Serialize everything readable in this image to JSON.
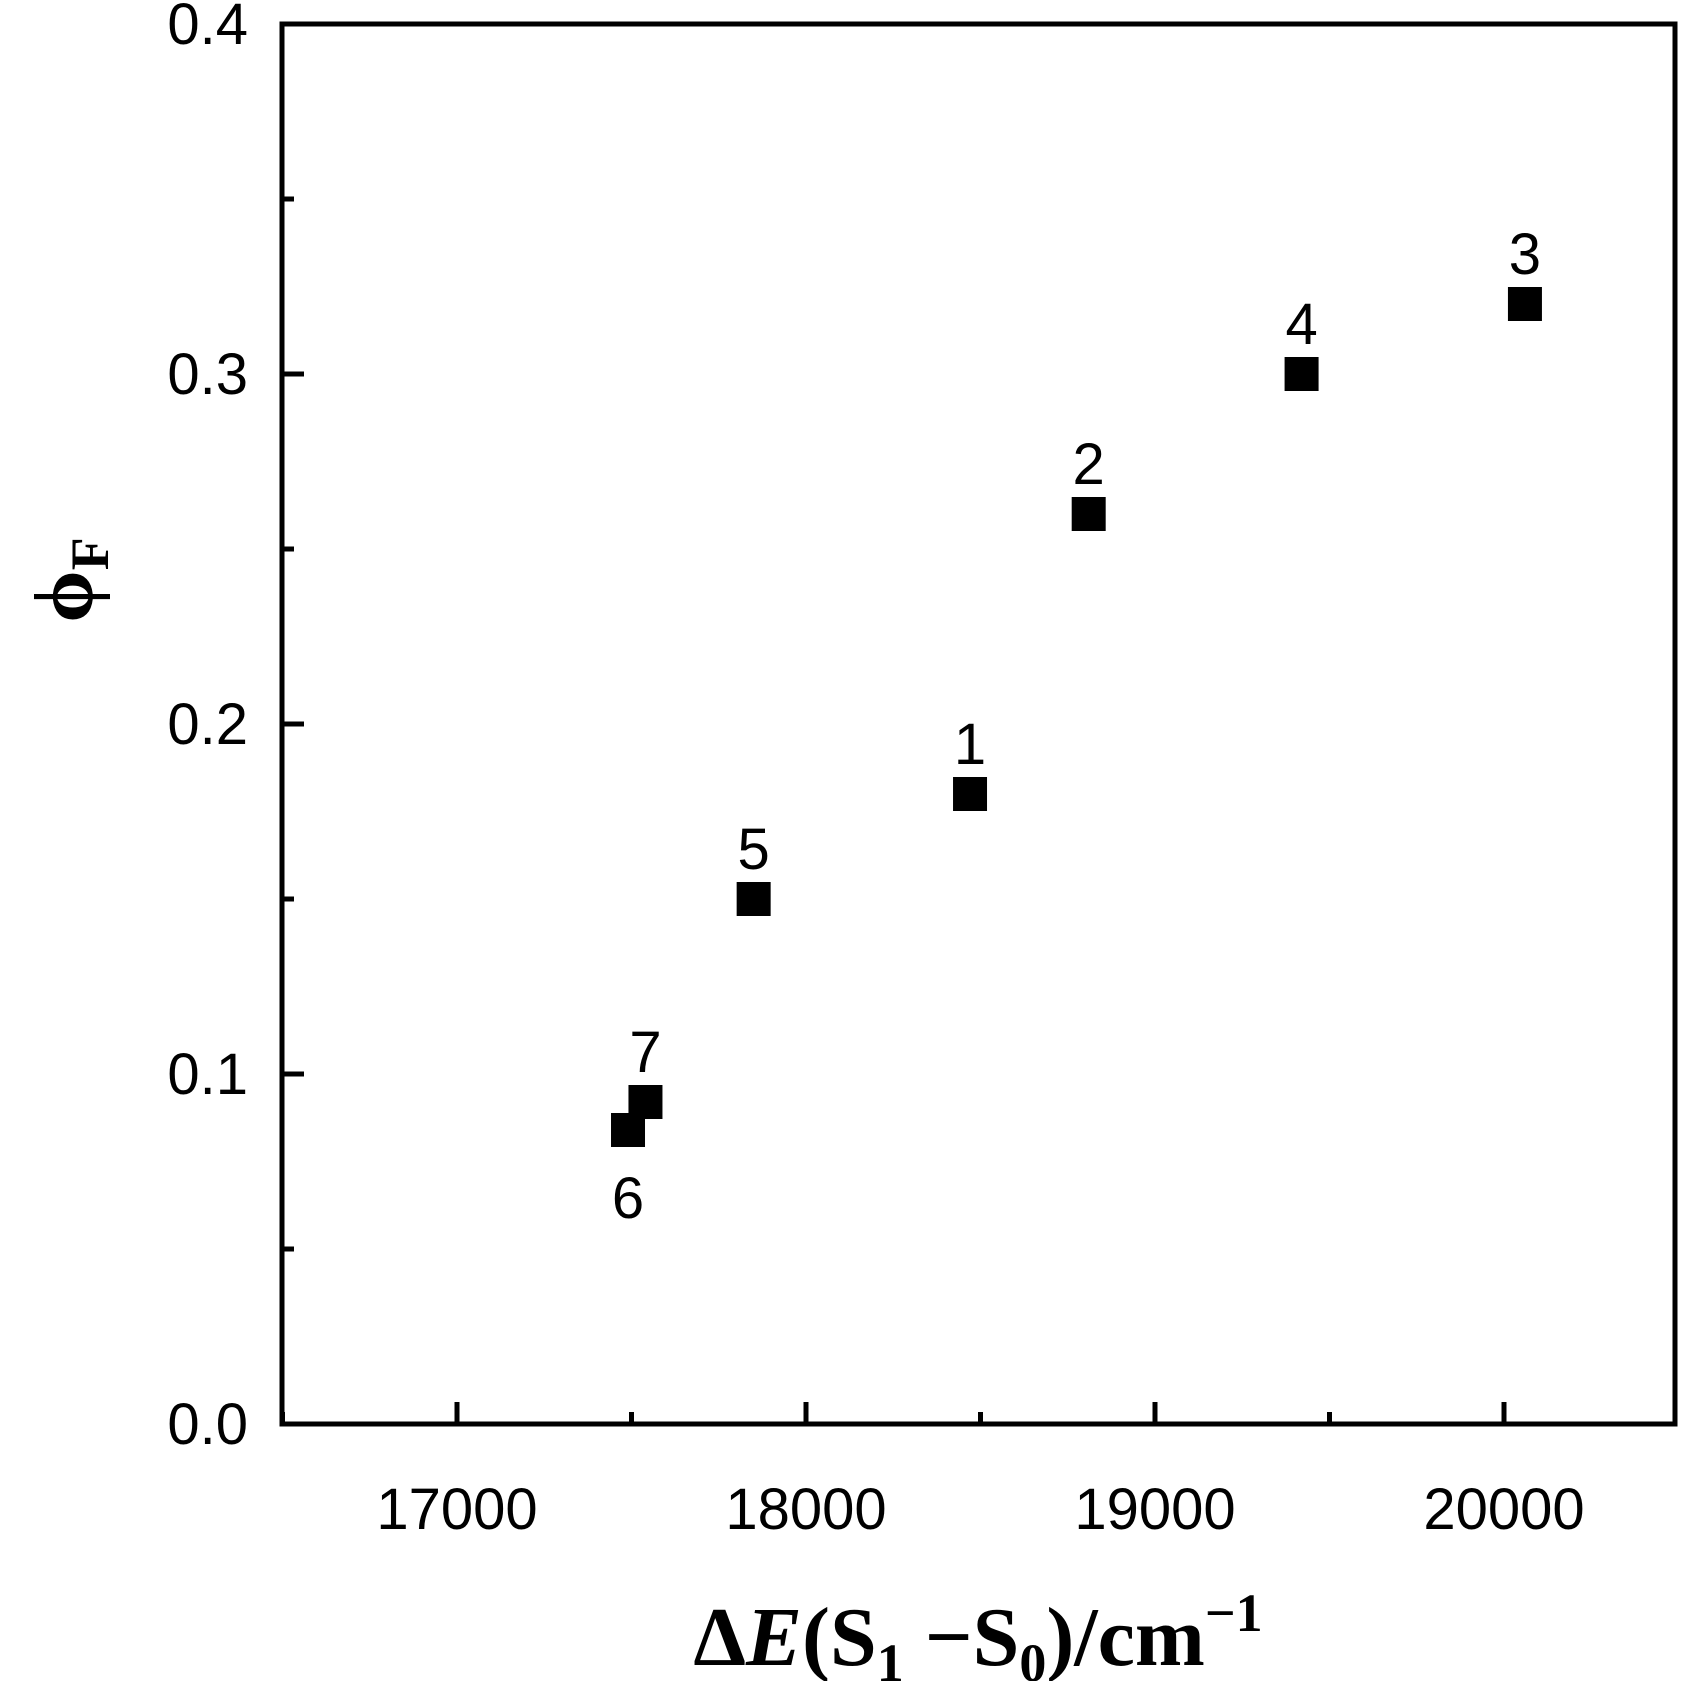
{
  "chart_data": {
    "type": "scatter",
    "title": "",
    "xlabel": {
      "delta": "Δ",
      "var": "E",
      "open": "(S",
      "sub1": "1",
      "mid": " −S",
      "sub0": "0",
      "close": ")/cm",
      "sup": "−1"
    },
    "ylabel": {
      "main": "ϕ",
      "sub": "F"
    },
    "xlim": [
      16500,
      24500
    ],
    "ylim": [
      0.0,
      0.4
    ],
    "xticks": [
      17000,
      18000,
      19000,
      20000
    ],
    "xtick_labels": [
      "17000",
      "18000",
      "19000",
      "20000"
    ],
    "xminor": [
      16500,
      17500,
      18500,
      19500,
      20500
    ],
    "yticks": [
      0.0,
      0.1,
      0.2,
      0.3,
      0.4
    ],
    "ytick_labels": [
      "0.0",
      "0.1",
      "0.2",
      "0.3",
      "0.4"
    ],
    "yminor": [
      0.05,
      0.15,
      0.25,
      0.35
    ],
    "grid": false,
    "marker": "square",
    "marker_color": "#000000",
    "points": [
      {
        "label": "1",
        "x": 18470,
        "y": 0.18,
        "label_pos": "above"
      },
      {
        "label": "2",
        "x": 18810,
        "y": 0.26,
        "label_pos": "above"
      },
      {
        "label": "3",
        "x": 20060,
        "y": 0.32,
        "label_pos": "above"
      },
      {
        "label": "4",
        "x": 19420,
        "y": 0.3,
        "label_pos": "above"
      },
      {
        "label": "5",
        "x": 17850,
        "y": 0.15,
        "label_pos": "above"
      },
      {
        "label": "6",
        "x": 17490,
        "y": 0.084,
        "label_pos": "below"
      },
      {
        "label": "7",
        "x": 17540,
        "y": 0.092,
        "label_pos": "above"
      }
    ]
  }
}
